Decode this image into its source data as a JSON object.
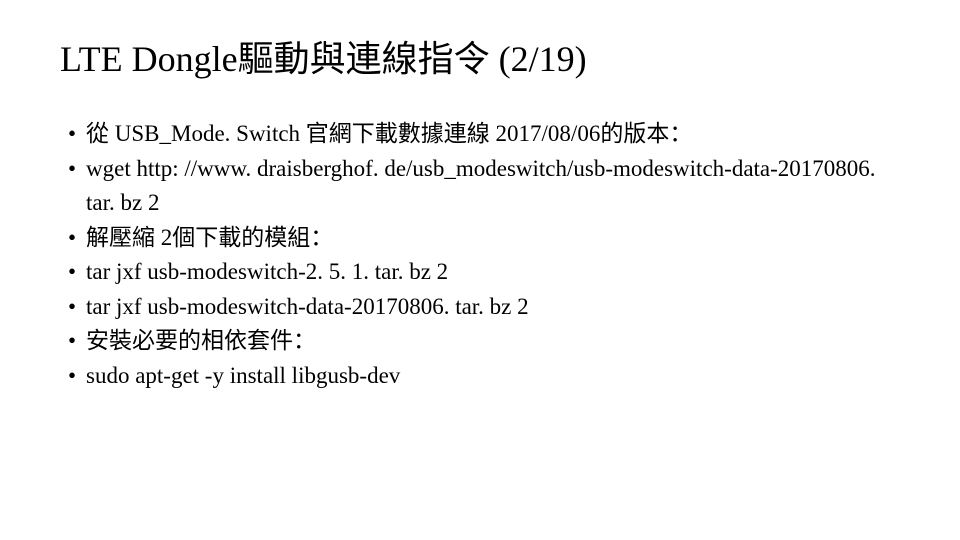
{
  "slide": {
    "title": "LTE Dongle驅動與連線指令 (2/19)",
    "bullets": [
      "從 USB_Mode. Switch 官網下載數據連線 2017/08/06的版本：",
      "wget http: //www. draisberghof. de/usb_modeswitch/usb-modeswitch-data-20170806. tar. bz 2",
      "解壓縮 2個下載的模組：",
      "tar jxf usb-modeswitch-2. 5. 1. tar. bz 2",
      "tar jxf usb-modeswitch-data-20170806. tar. bz 2",
      "安裝必要的相依套件：",
      "sudo apt-get -y install libgusb-dev"
    ]
  },
  "style": {
    "background_color": "#ffffff",
    "text_color": "#000000",
    "title_fontsize": 36,
    "body_fontsize": 23,
    "font_family": "Times New Roman"
  }
}
